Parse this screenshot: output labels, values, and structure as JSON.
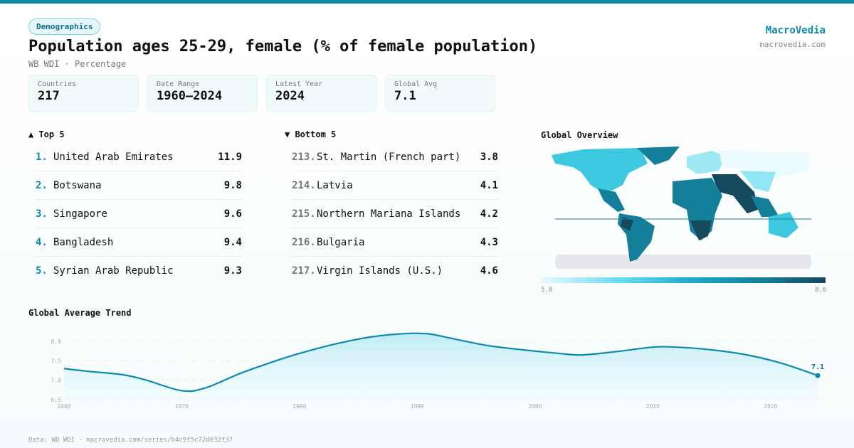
{
  "header": {
    "category": "Demographics",
    "title": "Population ages 25-29, female (% of female population)",
    "subtitle": "WB WDI · Percentage",
    "brand": "MacroVedia",
    "brand_url": "macrovedia.com"
  },
  "stats": [
    {
      "label": "Countries",
      "value": "217"
    },
    {
      "label": "Date Range",
      "value": "1960–2024"
    },
    {
      "label": "Latest Year",
      "value": "2024"
    },
    {
      "label": "Global Avg",
      "value": "7.1"
    }
  ],
  "top5": {
    "title": "▲ Top 5",
    "items": [
      {
        "rank": "1.",
        "name": "United Arab Emirates",
        "value": "11.9"
      },
      {
        "rank": "2.",
        "name": "Botswana",
        "value": "9.8"
      },
      {
        "rank": "3.",
        "name": "Singapore",
        "value": "9.6"
      },
      {
        "rank": "4.",
        "name": "Bangladesh",
        "value": "9.4"
      },
      {
        "rank": "5.",
        "name": "Syrian Arab Republic",
        "value": "9.3"
      }
    ]
  },
  "bottom5": {
    "title": "▼ Bottom 5",
    "items": [
      {
        "rank": "213.",
        "name": "St. Martin (French part)",
        "value": "3.8"
      },
      {
        "rank": "214.",
        "name": "Latvia",
        "value": "4.1"
      },
      {
        "rank": "215.",
        "name": "Northern Mariana Islands",
        "value": "4.2"
      },
      {
        "rank": "216.",
        "name": "Bulgaria",
        "value": "4.3"
      },
      {
        "rank": "217.",
        "name": "Virgin Islands (U.S.)",
        "value": "4.6"
      }
    ]
  },
  "map": {
    "title": "Global Overview",
    "legend_min": "5.0",
    "legend_max": "8.6",
    "colors": [
      "#eafaff",
      "#5fd8ee",
      "#1aa6c6",
      "#137f99",
      "#14495e"
    ]
  },
  "footer": "Data: WB WDI · macrovedia.com/series/b4c9f5c72d032f37",
  "chart_data": {
    "type": "area",
    "title": "Global Average Trend",
    "xlabel": "",
    "ylabel": "",
    "xlim": [
      1960,
      2024
    ],
    "ylim": [
      6.5,
      8.2
    ],
    "x_ticks": [
      "1960",
      "1970",
      "1980",
      "1990",
      "2000",
      "2010",
      "2020"
    ],
    "y_ticks": [
      "6.5",
      "7.0",
      "7.5",
      "8.0"
    ],
    "grid": true,
    "color": "#0e8aad",
    "last_label": "7.1",
    "x": [
      1960,
      1962,
      1965,
      1967,
      1970,
      1972,
      1975,
      1978,
      1980,
      1983,
      1986,
      1989,
      1991,
      1993,
      1996,
      1999,
      2002,
      2004,
      2007,
      2010,
      2012,
      2015,
      2018,
      2021,
      2024
    ],
    "y": [
      7.3,
      7.23,
      7.14,
      7.0,
      6.73,
      6.8,
      7.18,
      7.5,
      7.69,
      7.93,
      8.11,
      8.2,
      8.19,
      8.07,
      7.89,
      7.78,
      7.69,
      7.65,
      7.74,
      7.85,
      7.85,
      7.78,
      7.65,
      7.43,
      7.12
    ]
  }
}
